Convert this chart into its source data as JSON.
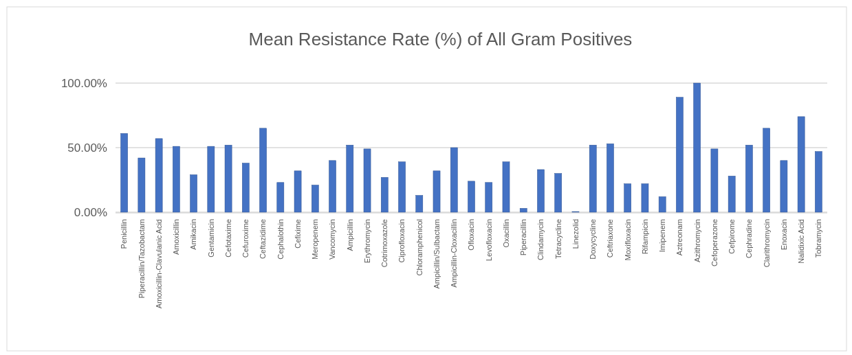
{
  "chart_data": {
    "type": "bar",
    "title": "Mean Resistance Rate (%) of All Gram Positives",
    "categories": [
      "Penicillin",
      "Piperacillin/Tazobactam",
      "Amoxicillin-Clavulanic Acid",
      "Amoxicillin",
      "Amikacin",
      "Gentamicin",
      "Cefotaxime",
      "Cefuroxime",
      "Ceftazidime",
      "Cephalothin",
      "Cefixime",
      "Meropenem",
      "Vancomycin",
      "Ampicillin",
      "Erythromycin",
      "Cotrimoxazole",
      "Ciprofloxacin",
      "Chloramphenicol",
      "Ampicillin/Sulbactam",
      "Ampicillin-Cloxacillin",
      "Ofloxacin",
      "Levofloxacin",
      "Oxacillin",
      "Piperacillin",
      "Clindamycin",
      "Tetracycline",
      "Linezolid",
      "Doxycycline",
      "Ceftriaxone",
      "Moxifloxacin",
      "Rifampicin",
      "Imipenem",
      "Aztreonam",
      "Azithromycin",
      "Cefoperazone",
      "Cefpirome",
      "Cephradine",
      "Clarithromycin",
      "Enoxacin",
      "Nalidixic Acid",
      "Tobramycin"
    ],
    "values": [
      61,
      42,
      57,
      51,
      29,
      51,
      52,
      38,
      65,
      23,
      32,
      21,
      40,
      52,
      49,
      27,
      39,
      13,
      32,
      50,
      24,
      23,
      39,
      3,
      33,
      30,
      0.5,
      52,
      53,
      22,
      22,
      12,
      89,
      100,
      49,
      28,
      52,
      65,
      40,
      74,
      47
    ],
    "color": "#4472c4",
    "ylim": [
      0,
      100
    ],
    "yticks": [
      {
        "value": 0,
        "label": "0.00%"
      },
      {
        "value": 50,
        "label": "50.00%"
      },
      {
        "value": 100,
        "label": "100.00%"
      }
    ],
    "grid": true
  }
}
